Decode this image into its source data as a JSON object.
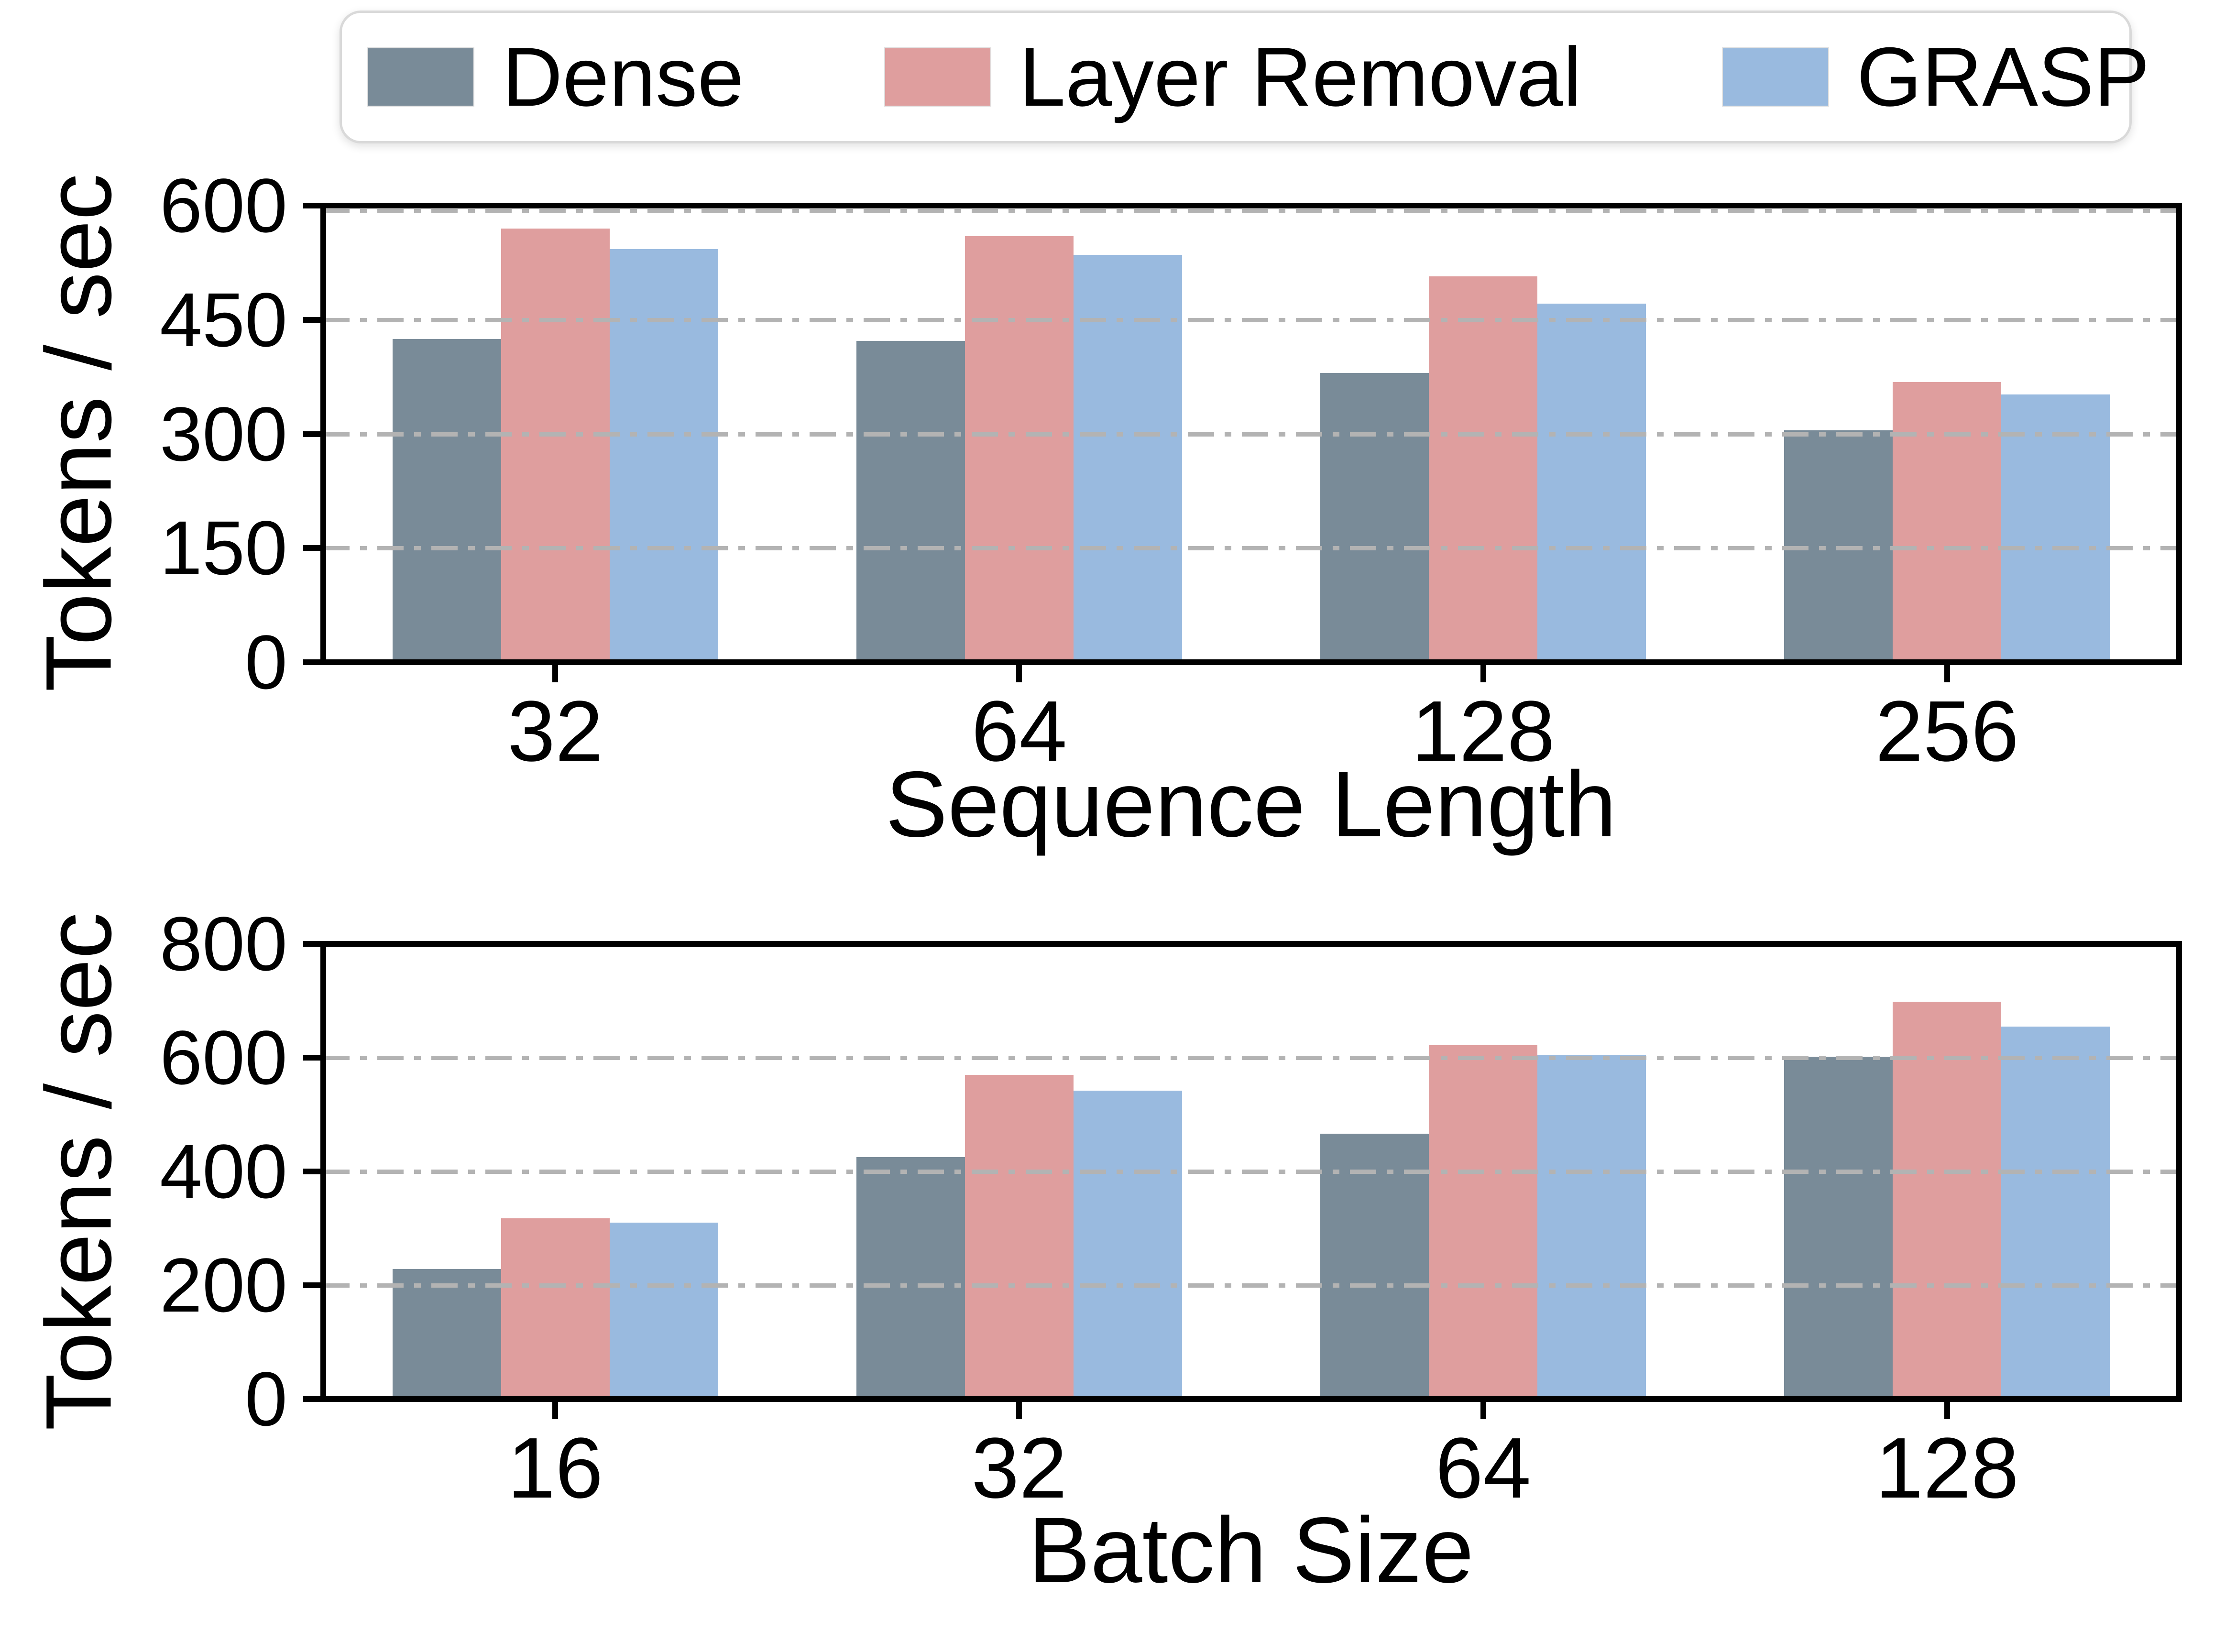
{
  "legend": {
    "items": [
      {
        "label": "Dense",
        "color": "#798b98"
      },
      {
        "label": "Layer Removal",
        "color": "#df9e9e"
      },
      {
        "label": "GRASP",
        "color": "#99badf"
      }
    ],
    "border_color": "#d9d9d9",
    "position": "top"
  },
  "colors": {
    "dense": "#798b98",
    "layer_removal": "#df9e9e",
    "grasp": "#99badf",
    "gridline": "#b3b3b3",
    "axis": "#000000"
  },
  "chart_data": [
    {
      "type": "bar",
      "title": "",
      "xlabel": "Sequence Length",
      "ylabel": "Tokens / sec",
      "categories": [
        "32",
        "64",
        "128",
        "256"
      ],
      "series": [
        {
          "name": "Dense",
          "color": "#798b98",
          "values": [
            425,
            422,
            380,
            305
          ]
        },
        {
          "name": "Layer Removal",
          "color": "#df9e9e",
          "values": [
            570,
            560,
            507,
            368
          ]
        },
        {
          "name": "GRASP",
          "color": "#99badf",
          "values": [
            543,
            535,
            471,
            352
          ]
        }
      ],
      "ylim": [
        0,
        600
      ],
      "yticks": [
        0,
        150,
        300,
        450,
        600
      ],
      "grid_yticks": [
        150,
        300,
        450
      ],
      "grid_style": "dash-dot",
      "grid_on": true,
      "legend_position": "top"
    },
    {
      "type": "bar",
      "title": "",
      "xlabel": "Batch Size",
      "ylabel": "Tokens / sec",
      "categories": [
        "16",
        "32",
        "64",
        "128"
      ],
      "series": [
        {
          "name": "Dense",
          "color": "#798b98",
          "values": [
            229,
            425,
            466,
            602
          ]
        },
        {
          "name": "Layer Removal",
          "color": "#df9e9e",
          "values": [
            318,
            570,
            622,
            698
          ]
        },
        {
          "name": "GRASP",
          "color": "#99badf",
          "values": [
            310,
            542,
            605,
            655
          ]
        }
      ],
      "ylim": [
        0,
        800
      ],
      "yticks": [
        0,
        200,
        400,
        600,
        800
      ],
      "grid_yticks": [
        200,
        400,
        600
      ],
      "grid_style": "dash-dot",
      "grid_on": true,
      "legend_position": "none"
    }
  ]
}
